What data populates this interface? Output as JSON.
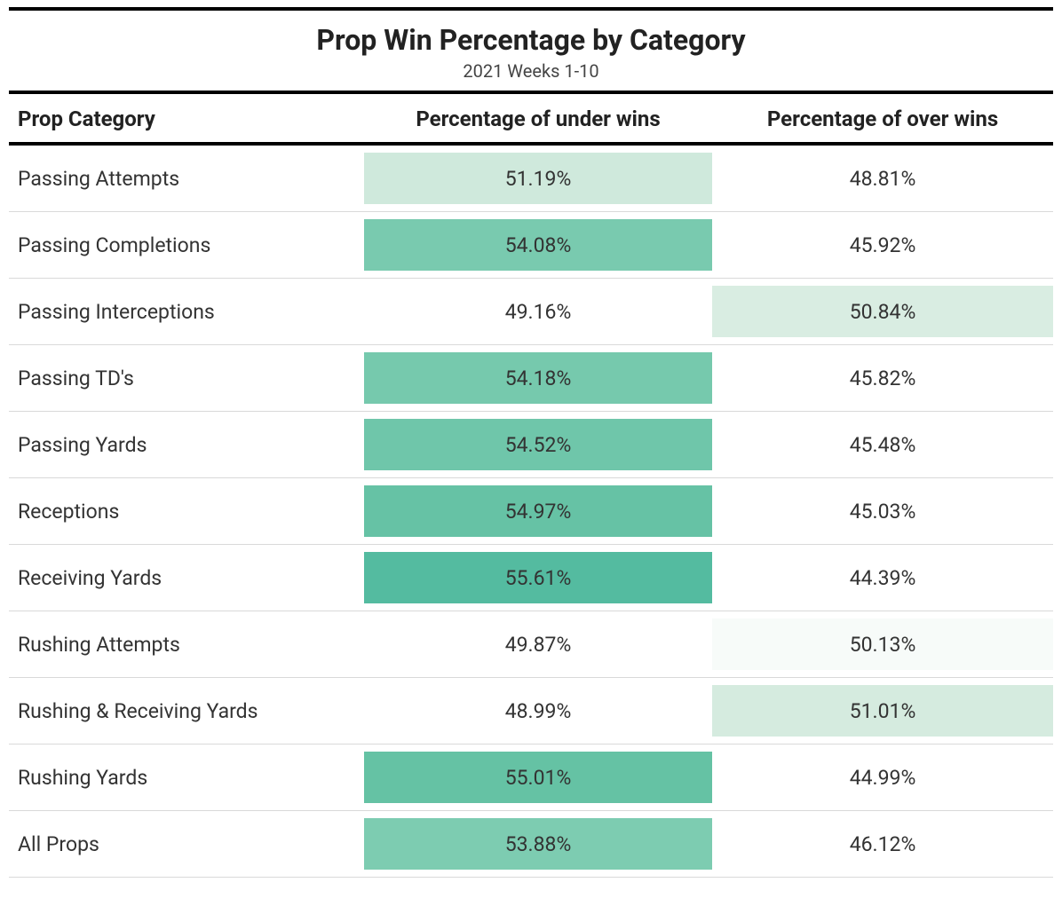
{
  "title": "Prop Win Percentage by Category",
  "subtitle": "2021 Weeks 1-10",
  "columns": [
    "Prop Category",
    "Percentage of under wins",
    "Percentage of over wins"
  ],
  "background_color": "#ffffff",
  "text_color": "#2a2a2a",
  "row_border_color": "#d9d9d9",
  "rule_color": "#000000",
  "title_fontsize": 32,
  "subtitle_fontsize": 20,
  "header_fontsize": 24,
  "cell_fontsize": 23,
  "rows": [
    {
      "category": "Passing Attempts",
      "under": "51.19%",
      "over": "48.81%",
      "under_bg": "#cfe9dc",
      "over_bg": "#ffffff"
    },
    {
      "category": "Passing Completions",
      "under": "54.08%",
      "over": "45.92%",
      "under_bg": "#79caaf",
      "over_bg": "#ffffff"
    },
    {
      "category": "Passing Interceptions",
      "under": "49.16%",
      "over": "50.84%",
      "under_bg": "#ffffff",
      "over_bg": "#d9ede2"
    },
    {
      "category": "Passing TD's",
      "under": "54.18%",
      "over": "45.82%",
      "under_bg": "#76c9ad",
      "over_bg": "#ffffff"
    },
    {
      "category": "Passing Yards",
      "under": "54.52%",
      "over": "45.48%",
      "under_bg": "#6fc6aa",
      "over_bg": "#ffffff"
    },
    {
      "category": "Receptions",
      "under": "54.97%",
      "over": "45.03%",
      "under_bg": "#66c2a5",
      "over_bg": "#ffffff"
    },
    {
      "category": "Receiving Yards",
      "under": "55.61%",
      "over": "44.39%",
      "under_bg": "#54bba0",
      "over_bg": "#ffffff"
    },
    {
      "category": "Rushing Attempts",
      "under": "49.87%",
      "over": "50.13%",
      "under_bg": "#ffffff",
      "over_bg": "#f7fbf9"
    },
    {
      "category": "Rushing & Receiving Yards",
      "under": "48.99%",
      "over": "51.01%",
      "under_bg": "#ffffff",
      "over_bg": "#d5ebdf"
    },
    {
      "category": "Rushing Yards",
      "under": "55.01%",
      "over": "44.99%",
      "under_bg": "#65c2a4",
      "over_bg": "#ffffff"
    },
    {
      "category": "All Props",
      "under": "53.88%",
      "over": "46.12%",
      "under_bg": "#7dccb1",
      "over_bg": "#ffffff"
    }
  ]
}
